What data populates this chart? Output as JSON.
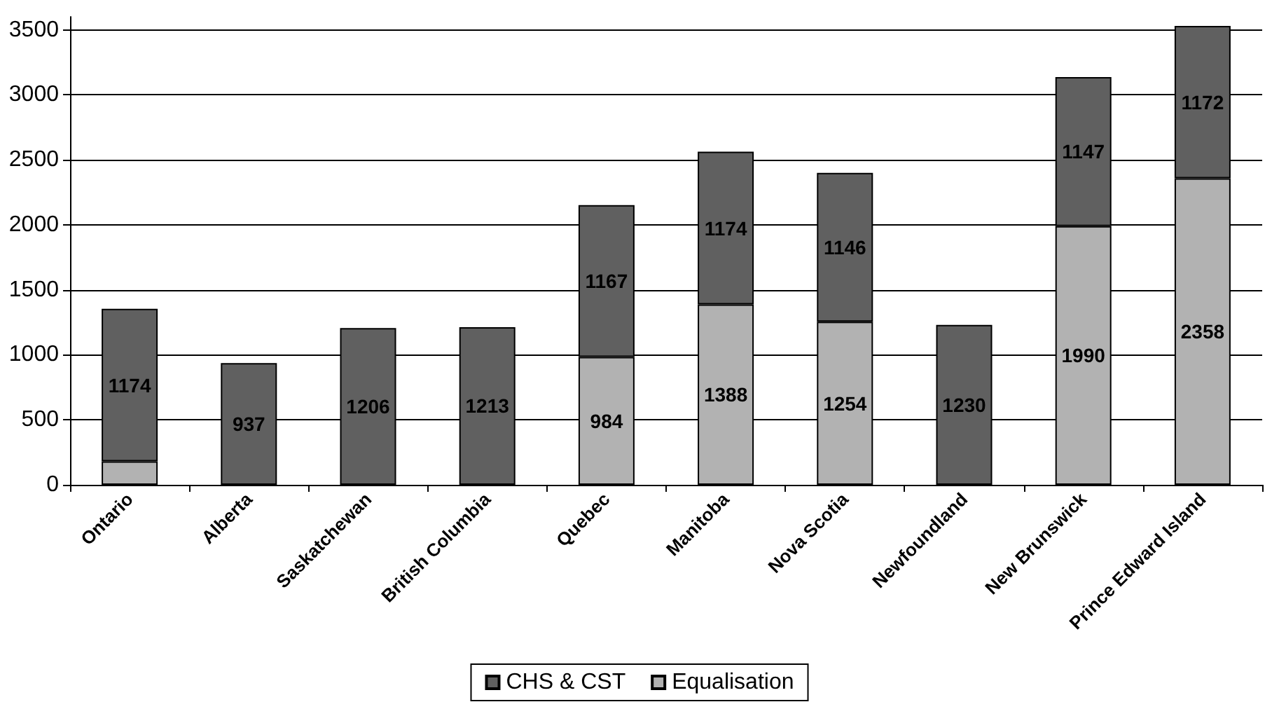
{
  "chart_data": {
    "type": "bar",
    "stacked": true,
    "categories": [
      "Ontario",
      "Alberta",
      "Saskatchewan",
      "British Columbia",
      "Quebec",
      "Manitoba",
      "Nova Scotia",
      "Newfoundland",
      "New Brunswick",
      "Prince Edward Island"
    ],
    "series": [
      {
        "name": "Equalisation",
        "color": "#b2b2b2",
        "values": [
          180,
          null,
          null,
          null,
          984,
          1388,
          1254,
          null,
          1990,
          2358
        ],
        "value_labels": [
          null,
          null,
          null,
          null,
          "984",
          "1388",
          "1254",
          null,
          "1990",
          "2358"
        ]
      },
      {
        "name": "CHS & CST",
        "color": "#606060",
        "values": [
          1174,
          937,
          1206,
          1213,
          1167,
          1174,
          1146,
          1230,
          1147,
          1172
        ],
        "value_labels": [
          "1174",
          "937",
          "1206",
          "1213",
          "1167",
          "1174",
          "1146",
          "1230",
          "1147",
          "1172"
        ]
      }
    ],
    "ylim": [
      0,
      3600
    ],
    "yticks": [
      0,
      500,
      1000,
      1500,
      2000,
      2500,
      3000,
      3500
    ],
    "grid": "y",
    "legend": "bottom"
  }
}
